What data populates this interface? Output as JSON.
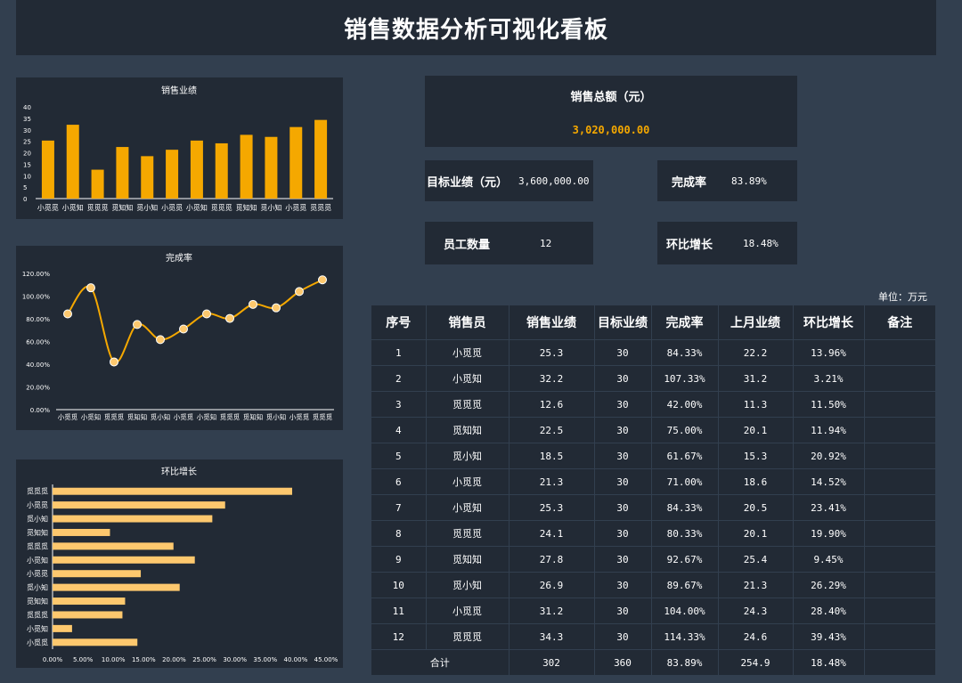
{
  "header": {
    "title": "销售数据分析可视化看板"
  },
  "kpis": {
    "total_label": "销售总额（元）",
    "total_value": "3,020,000.00",
    "target_label": "目标业绩（元）",
    "target_value": "3,600,000.00",
    "rate_label": "完成率",
    "rate_value": "83.89%",
    "staff_label": "员工数量",
    "staff_value": "12",
    "growth_label": "环比增长",
    "growth_value": "18.48%"
  },
  "colors": {
    "accent": "#f5a800",
    "bar_light": "#fdc86e",
    "bg": "#323f4f",
    "panel": "#222a35"
  },
  "table": {
    "unit": "单位：万元",
    "headers": [
      "序号",
      "销售员",
      "销售业绩",
      "目标业绩",
      "完成率",
      "上月业绩",
      "环比增长",
      "备注"
    ],
    "rows": [
      [
        "1",
        "小觅觅",
        "25.3",
        "30",
        "84.33%",
        "22.2",
        "13.96%",
        ""
      ],
      [
        "2",
        "小觅知",
        "32.2",
        "30",
        "107.33%",
        "31.2",
        "3.21%",
        ""
      ],
      [
        "3",
        "觅觅觅",
        "12.6",
        "30",
        "42.00%",
        "11.3",
        "11.50%",
        ""
      ],
      [
        "4",
        "觅知知",
        "22.5",
        "30",
        "75.00%",
        "20.1",
        "11.94%",
        ""
      ],
      [
        "5",
        "觅小知",
        "18.5",
        "30",
        "61.67%",
        "15.3",
        "20.92%",
        ""
      ],
      [
        "6",
        "小觅觅",
        "21.3",
        "30",
        "71.00%",
        "18.6",
        "14.52%",
        ""
      ],
      [
        "7",
        "小觅知",
        "25.3",
        "30",
        "84.33%",
        "20.5",
        "23.41%",
        ""
      ],
      [
        "8",
        "觅觅觅",
        "24.1",
        "30",
        "80.33%",
        "20.1",
        "19.90%",
        ""
      ],
      [
        "9",
        "觅知知",
        "27.8",
        "30",
        "92.67%",
        "25.4",
        "9.45%",
        ""
      ],
      [
        "10",
        "觅小知",
        "26.9",
        "30",
        "89.67%",
        "21.3",
        "26.29%",
        ""
      ],
      [
        "11",
        "小觅觅",
        "31.2",
        "30",
        "104.00%",
        "24.3",
        "28.40%",
        ""
      ],
      [
        "12",
        "觅觅觅",
        "34.3",
        "30",
        "114.33%",
        "24.6",
        "39.43%",
        ""
      ]
    ],
    "total": [
      "合计",
      "302",
      "360",
      "83.89%",
      "254.9",
      "18.48%",
      ""
    ]
  },
  "chart_data": [
    {
      "type": "bar",
      "title": "销售业绩",
      "categories": [
        "小觅觅",
        "小觅知",
        "觅觅觅",
        "觅知知",
        "觅小知",
        "小觅觅",
        "小觅知",
        "觅觅觅",
        "觅知知",
        "觅小知",
        "小觅觅",
        "觅觅觅"
      ],
      "values": [
        25.3,
        32.2,
        12.6,
        22.5,
        18.5,
        21.3,
        25.3,
        24.1,
        27.8,
        26.9,
        31.2,
        34.3
      ],
      "ylim": [
        0,
        40
      ],
      "yticks": [
        "0",
        "5",
        "10",
        "15",
        "20",
        "25",
        "30",
        "35",
        "40"
      ]
    },
    {
      "type": "line",
      "title": "完成率",
      "categories": [
        "小觅觅",
        "小觅知",
        "觅觅觅",
        "觅知知",
        "觅小知",
        "小觅觅",
        "小觅知",
        "觅觅觅",
        "觅知知",
        "觅小知",
        "小觅觅",
        "觅觅觅"
      ],
      "values": [
        84.33,
        107.33,
        42.0,
        75.0,
        61.67,
        71.0,
        84.33,
        80.33,
        92.67,
        89.67,
        104.0,
        114.33
      ],
      "ylim": [
        0,
        120
      ],
      "yticks": [
        "0.00%",
        "20.00%",
        "40.00%",
        "60.00%",
        "80.00%",
        "100.00%",
        "120.00%"
      ]
    },
    {
      "type": "bar",
      "orientation": "horizontal",
      "title": "环比增长",
      "categories": [
        "觅觅觅",
        "小觅觅",
        "觅小知",
        "觅知知",
        "觅觅觅",
        "小觅知",
        "小觅觅",
        "觅小知",
        "觅知知",
        "觅觅觅",
        "小觅知",
        "小觅觅"
      ],
      "values": [
        39.43,
        28.4,
        26.29,
        9.45,
        19.9,
        23.41,
        14.52,
        20.92,
        11.94,
        11.5,
        3.21,
        13.96
      ],
      "xlim": [
        0,
        45
      ],
      "xticks": [
        "0.00%",
        "5.00%",
        "10.00%",
        "15.00%",
        "20.00%",
        "25.00%",
        "30.00%",
        "35.00%",
        "40.00%",
        "45.00%"
      ]
    }
  ]
}
